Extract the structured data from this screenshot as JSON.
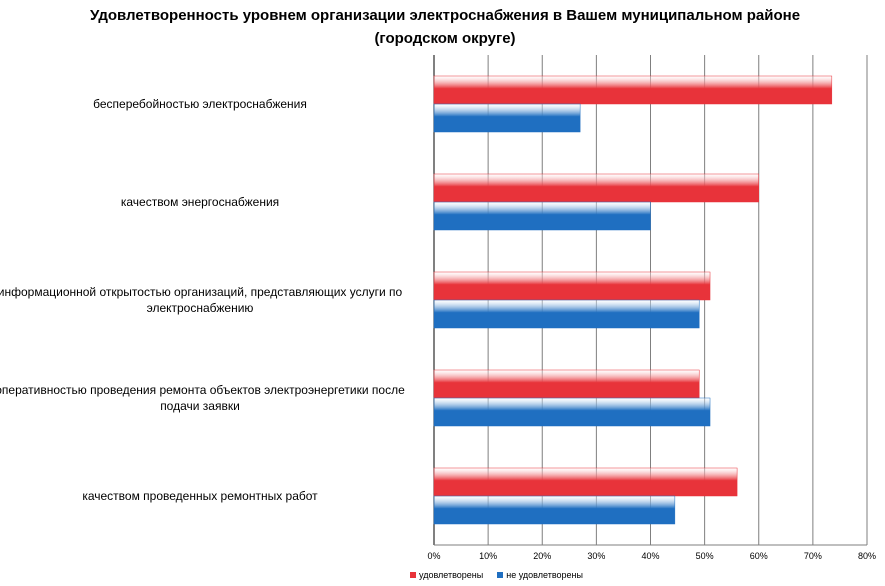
{
  "chart_data": {
    "type": "bar",
    "orientation": "horizontal",
    "title": "Удовлетворенность уровнем организации электроснабжения в Вашем муниципальном районе (городском округе)",
    "categories": [
      "бесперебойностью электроснабжения",
      "качеством энергоснабжения",
      "информационной открытостью организаций, представляющих услуги по электроснабжению",
      "оперативностью проведения ремонта объектов электроэнергетики после подачи заявки",
      "качеством проведенных ремонтных работ"
    ],
    "series": [
      {
        "name": "удовлетворены",
        "color": "#e8333a",
        "values": [
          73.5,
          60,
          51,
          49,
          56
        ]
      },
      {
        "name": "не удовлетворены",
        "color": "#1f6fc1",
        "values": [
          27,
          40,
          49,
          51,
          44.5
        ]
      }
    ],
    "xlim": [
      0,
      80
    ],
    "xticks": [
      "0%",
      "10%",
      "20%",
      "30%",
      "40%",
      "50%",
      "60%",
      "70%",
      "80%"
    ],
    "grid": true,
    "legend_position": "bottom"
  }
}
